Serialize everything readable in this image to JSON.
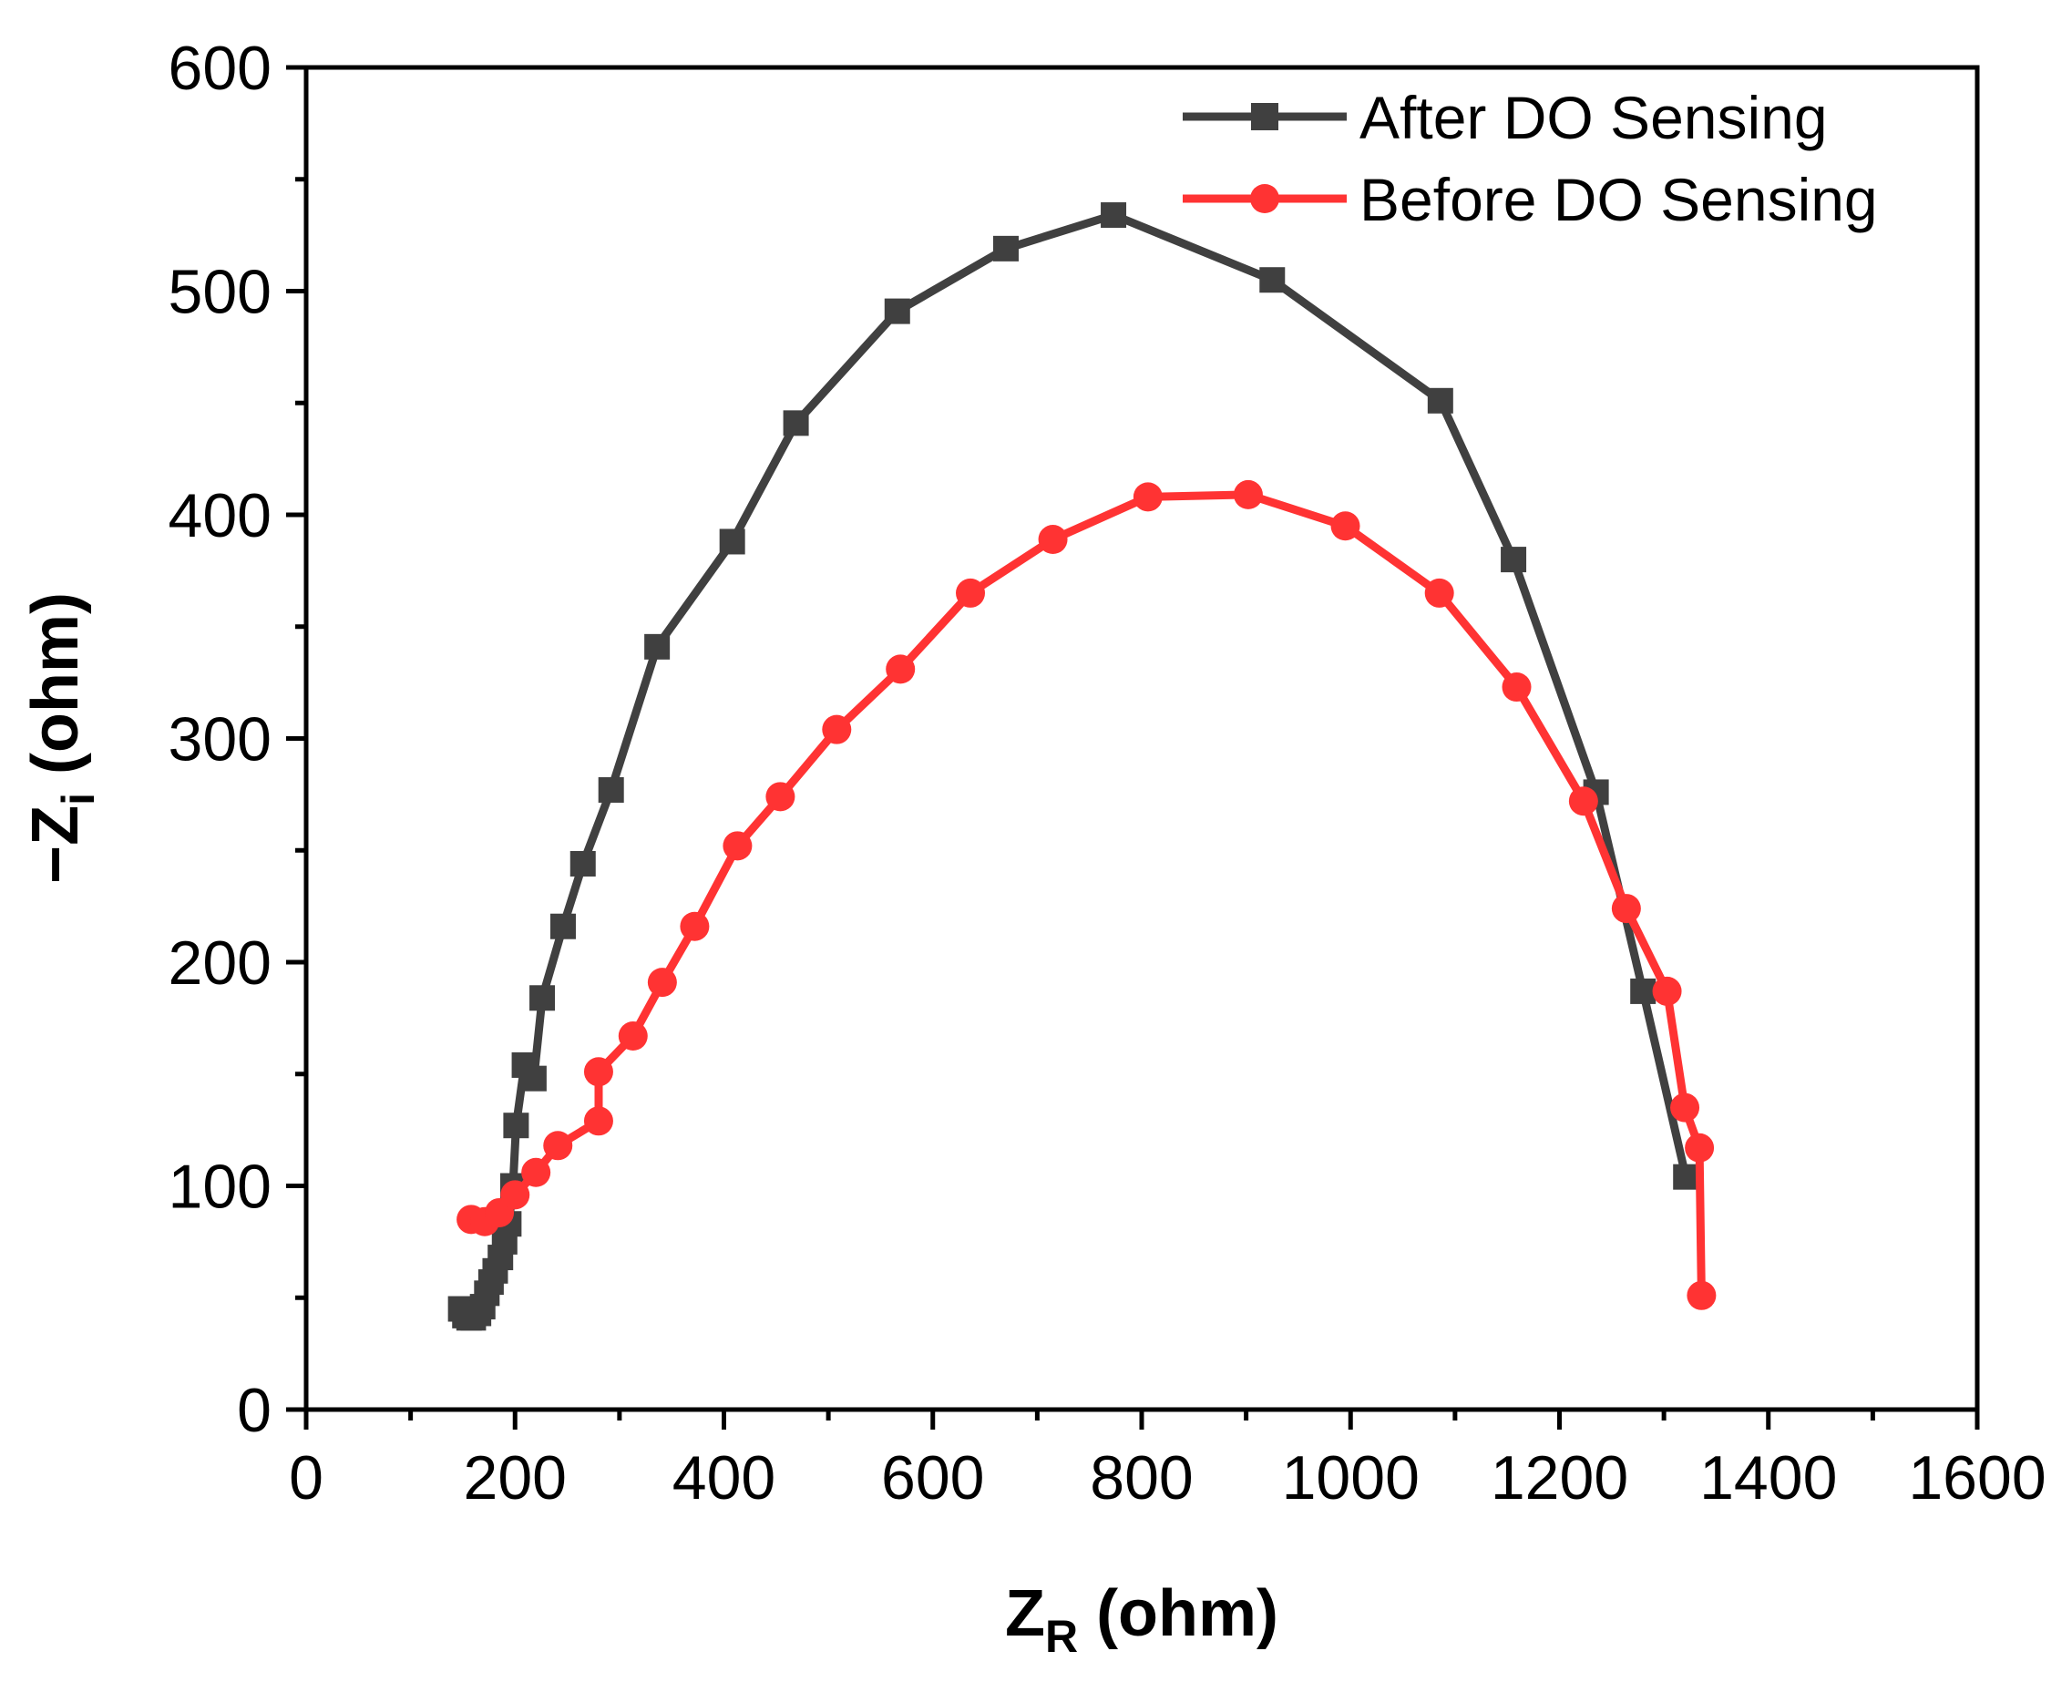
{
  "chart_data": {
    "type": "line",
    "title": "",
    "xlabel": {
      "main": "Z",
      "sub": "R",
      "unit": " (ohm)"
    },
    "ylabel": {
      "prefix": "−Z",
      "sub": "i",
      "unit": " (ohm)"
    },
    "xlim": [
      0,
      1600
    ],
    "ylim": [
      0,
      600
    ],
    "xticks": [
      0,
      200,
      400,
      600,
      800,
      1000,
      1200,
      1400,
      1600
    ],
    "yticks": [
      0,
      100,
      200,
      300,
      400,
      500,
      600
    ],
    "grid": false,
    "legend_position": "top-right",
    "series": [
      {
        "name": "After DO Sensing",
        "color": "#404040",
        "marker": "square",
        "points": [
          [
            148,
            45
          ],
          [
            152,
            42
          ],
          [
            156,
            41
          ],
          [
            160,
            41
          ],
          [
            165,
            43
          ],
          [
            169,
            46
          ],
          [
            173,
            52
          ],
          [
            177,
            57
          ],
          [
            181,
            62
          ],
          [
            186,
            68
          ],
          [
            190,
            75
          ],
          [
            194,
            83
          ],
          [
            198,
            100
          ],
          [
            201,
            127
          ],
          [
            209,
            154
          ],
          [
            218,
            148
          ],
          [
            226,
            184
          ],
          [
            246,
            216
          ],
          [
            265,
            244
          ],
          [
            292,
            277
          ],
          [
            336,
            341
          ],
          [
            408,
            388
          ],
          [
            469,
            441
          ],
          [
            566,
            491
          ],
          [
            670,
            519
          ],
          [
            773,
            534
          ],
          [
            925,
            505
          ],
          [
            1086,
            451
          ],
          [
            1156,
            380
          ],
          [
            1235,
            276
          ],
          [
            1280,
            187
          ],
          [
            1321,
            104
          ]
        ]
      },
      {
        "name": "Before DO Sensing",
        "color": "#FF3333",
        "marker": "circle",
        "points": [
          [
            158,
            85
          ],
          [
            171,
            84
          ],
          [
            185,
            88
          ],
          [
            200,
            96
          ],
          [
            220,
            106
          ],
          [
            241,
            118
          ],
          [
            280,
            129
          ],
          [
            280,
            151
          ],
          [
            313,
            167
          ],
          [
            341,
            191
          ],
          [
            372,
            216
          ],
          [
            413,
            252
          ],
          [
            454,
            274
          ],
          [
            508,
            304
          ],
          [
            569,
            331
          ],
          [
            636,
            365
          ],
          [
            715,
            389
          ],
          [
            806,
            408
          ],
          [
            902,
            409
          ],
          [
            995,
            395
          ],
          [
            1085,
            365
          ],
          [
            1159,
            323
          ],
          [
            1223,
            272
          ],
          [
            1264,
            224
          ],
          [
            1303,
            187
          ],
          [
            1320,
            135
          ],
          [
            1334,
            117
          ],
          [
            1336,
            51
          ]
        ]
      }
    ]
  }
}
